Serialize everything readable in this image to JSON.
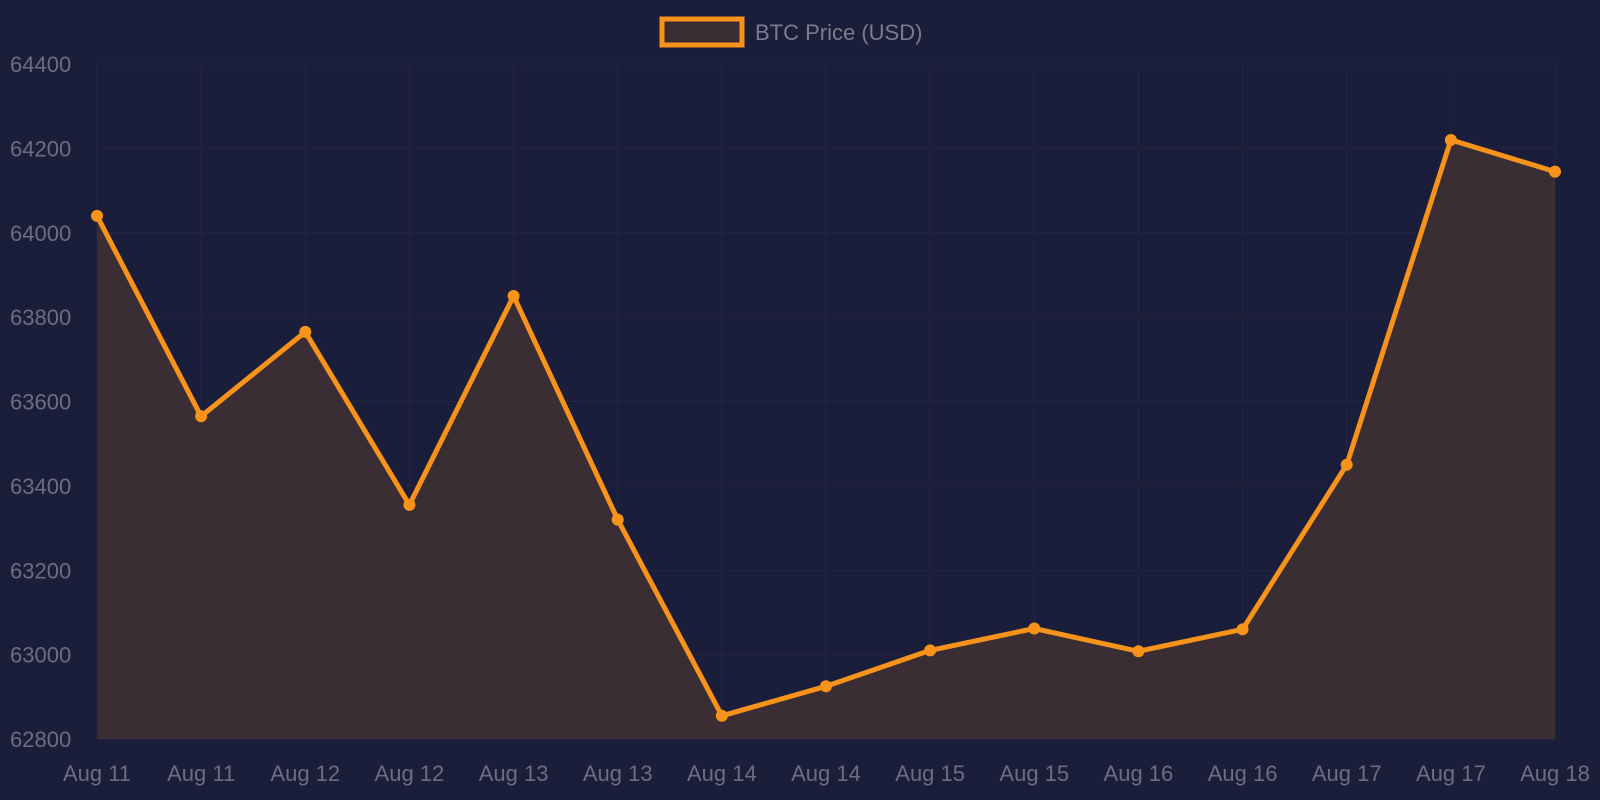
{
  "colors": {
    "background": "#1b1e3a",
    "gridline": "#23263f",
    "line": "#f7931a",
    "fill": "#3b2d34",
    "text": "#6b6e7e"
  },
  "chart_data": {
    "type": "area",
    "title": "",
    "xlabel": "",
    "ylabel": "",
    "legend": {
      "position": "top-center",
      "entries": [
        "BTC Price (USD)"
      ]
    },
    "grid": true,
    "categories": [
      "Aug 11",
      "Aug 11",
      "Aug 12",
      "Aug 12",
      "Aug 13",
      "Aug 13",
      "Aug 14",
      "Aug 14",
      "Aug 15",
      "Aug 15",
      "Aug 16",
      "Aug 16",
      "Aug 17",
      "Aug 17",
      "Aug 18"
    ],
    "ylim": [
      62800,
      64400
    ],
    "yticks": [
      64400,
      64200,
      64000,
      63800,
      63600,
      63400,
      63200,
      63000,
      62800
    ],
    "series": [
      {
        "name": "BTC Price (USD)",
        "values": [
          64040,
          63565,
          63765,
          63355,
          63850,
          63320,
          62855,
          62925,
          63010,
          63062,
          63008,
          63060,
          63450,
          64220,
          64145
        ]
      }
    ]
  }
}
